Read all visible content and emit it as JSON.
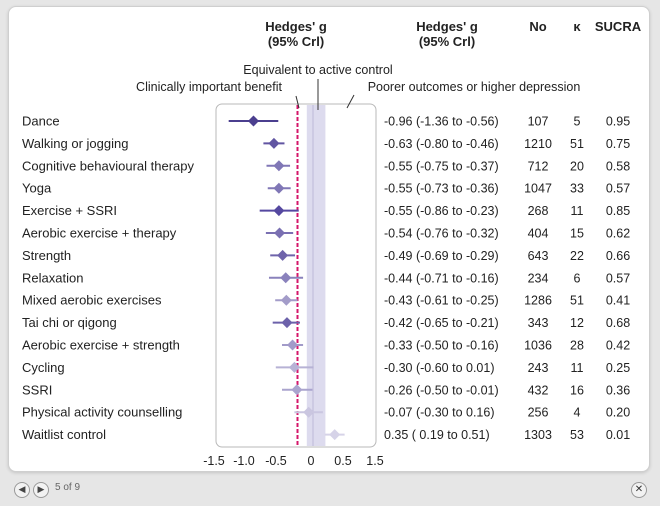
{
  "chart_data": {
    "type": "forest",
    "title": "",
    "columns": {
      "effect_header": [
        "Hedges' g",
        "(95% Crl)"
      ],
      "effect_text_header": [
        "Hedges' g",
        "(95% Crl)"
      ],
      "n_header": "No",
      "k_header": "κ",
      "sucra_header": "SUCRA"
    },
    "annotations": {
      "equivalent": "Equivalent to active control",
      "benefit": "Clinically important benefit",
      "poorer": "Poorer outcomes or higher depression"
    },
    "xaxis": {
      "ticks": [
        "-1.5",
        "-1.0",
        "-0.5",
        "0",
        "0.5",
        "1.5"
      ],
      "range": [
        -1.5,
        1.5
      ]
    },
    "mcid_line": -0.25,
    "equivalence_band": [
      -0.1,
      0.2
    ],
    "rows": [
      {
        "name": "Dance",
        "g": -0.96,
        "lo": -1.36,
        "hi": -0.56,
        "text": "-0.96 (-1.36 to -0.56)",
        "n": "107",
        "k": "5",
        "sucra": "0.95",
        "color": "#4b3f8f"
      },
      {
        "name": "Walking or jogging",
        "g": -0.63,
        "lo": -0.8,
        "hi": -0.46,
        "text": "-0.63 (-0.80 to -0.46)",
        "n": "1210",
        "k": "51",
        "sucra": "0.75",
        "color": "#6155a2"
      },
      {
        "name": "Cognitive behavioural therapy",
        "g": -0.55,
        "lo": -0.75,
        "hi": -0.37,
        "text": "-0.55 (-0.75 to -0.37)",
        "n": "712",
        "k": "20",
        "sucra": "0.58",
        "color": "#8077b6"
      },
      {
        "name": "Yoga",
        "g": -0.55,
        "lo": -0.73,
        "hi": -0.36,
        "text": "-0.55 (-0.73 to -0.36)",
        "n": "1047",
        "k": "33",
        "sucra": "0.57",
        "color": "#8077b6"
      },
      {
        "name": "Exercise + SSRI",
        "g": -0.55,
        "lo": -0.86,
        "hi": -0.23,
        "text": "-0.55 (-0.86 to -0.23)",
        "n": "268",
        "k": "11",
        "sucra": "0.85",
        "color": "#5548a0"
      },
      {
        "name": "Aerobic exercise + therapy",
        "g": -0.54,
        "lo": -0.76,
        "hi": -0.32,
        "text": "-0.54 (-0.76 to -0.32)",
        "n": "404",
        "k": "15",
        "sucra": "0.62",
        "color": "#7a70b2"
      },
      {
        "name": "Strength",
        "g": -0.49,
        "lo": -0.69,
        "hi": -0.29,
        "text": "-0.49 (-0.69 to -0.29)",
        "n": "643",
        "k": "22",
        "sucra": "0.66",
        "color": "#6f64ab"
      },
      {
        "name": "Relaxation",
        "g": -0.44,
        "lo": -0.71,
        "hi": -0.16,
        "text": "-0.44 (-0.71 to -0.16)",
        "n": "234",
        "k": "6",
        "sucra": "0.57",
        "color": "#8a82bc"
      },
      {
        "name": "Mixed aerobic exercises",
        "g": -0.43,
        "lo": -0.61,
        "hi": -0.25,
        "text": "-0.43 (-0.61 to -0.25)",
        "n": "1286",
        "k": "51",
        "sucra": "0.41",
        "color": "#a39cc9"
      },
      {
        "name": "Tai chi or qigong",
        "g": -0.42,
        "lo": -0.65,
        "hi": -0.21,
        "text": "-0.42 (-0.65 to -0.21)",
        "n": "343",
        "k": "12",
        "sucra": "0.68",
        "color": "#6c61aa"
      },
      {
        "name": "Aerobic exercise + strength",
        "g": -0.33,
        "lo": -0.5,
        "hi": -0.16,
        "text": "-0.33 (-0.50 to -0.16)",
        "n": "1036",
        "k": "28",
        "sucra": "0.42",
        "color": "#a29bc9"
      },
      {
        "name": "Cycling",
        "g": -0.3,
        "lo": -0.6,
        "hi": 0.01,
        "text": "-0.30 (-0.60 to  0.01)",
        "n": "243",
        "k": "11",
        "sucra": "0.25",
        "color": "#b7b2d5"
      },
      {
        "name": "SSRI",
        "g": -0.26,
        "lo": -0.5,
        "hi": -0.01,
        "text": "-0.26 (-0.50 to -0.01)",
        "n": "432",
        "k": "16",
        "sucra": "0.36",
        "color": "#aaa4ce"
      },
      {
        "name": "Physical activity counselling",
        "g": -0.07,
        "lo": -0.3,
        "hi": 0.16,
        "text": "-0.07 (-0.30 to  0.16)",
        "n": "256",
        "k": "4",
        "sucra": "0.20",
        "color": "#cac6e0"
      },
      {
        "name": "Waitlist control",
        "g": 0.35,
        "lo": 0.19,
        "hi": 0.51,
        "text": "0.35 ( 0.19 to  0.51)",
        "n": "1303",
        "k": "53",
        "sucra": "0.01",
        "color": "#d6d3e8"
      }
    ]
  },
  "footer": {
    "pager": "5 of 9",
    "prev": "◀",
    "next": "▶",
    "close": "✕"
  }
}
